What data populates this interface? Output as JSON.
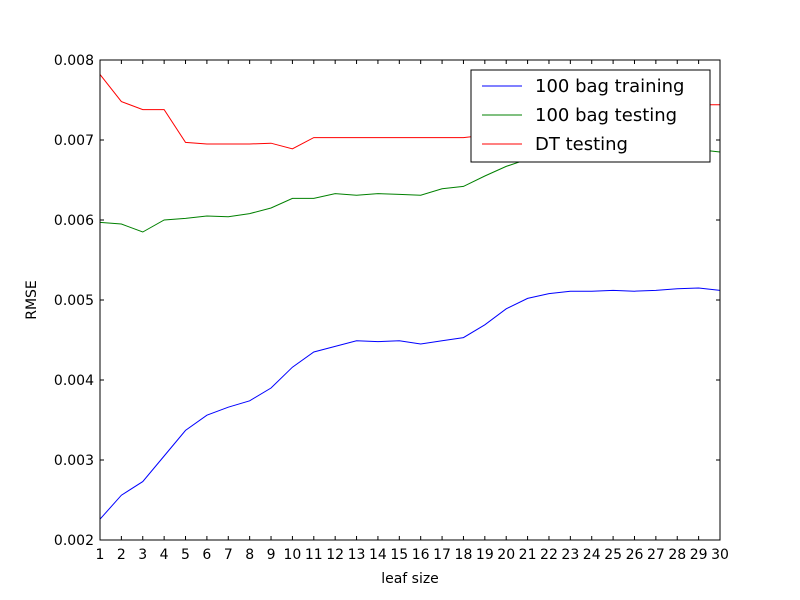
{
  "chart_data": {
    "type": "line",
    "xlabel": "leaf size",
    "ylabel": "RMSE",
    "xlim": [
      1,
      30
    ],
    "ylim": [
      0.002,
      0.008
    ],
    "x": [
      1,
      2,
      3,
      4,
      5,
      6,
      7,
      8,
      9,
      10,
      11,
      12,
      13,
      14,
      15,
      16,
      17,
      18,
      19,
      20,
      21,
      22,
      23,
      24,
      25,
      26,
      27,
      28,
      29,
      30
    ],
    "x_ticks": [
      "1",
      "2",
      "3",
      "4",
      "5",
      "6",
      "7",
      "8",
      "9",
      "10",
      "11",
      "12",
      "13",
      "14",
      "15",
      "16",
      "17",
      "18",
      "19",
      "20",
      "21",
      "22",
      "23",
      "24",
      "25",
      "26",
      "27",
      "28",
      "29",
      "30"
    ],
    "y_ticks": [
      "0.002",
      "0.003",
      "0.004",
      "0.005",
      "0.006",
      "0.007",
      "0.008"
    ],
    "y_tick_values": [
      0.002,
      0.003,
      0.004,
      0.005,
      0.006,
      0.007,
      0.008
    ],
    "grid": false,
    "legend_position": "top-right",
    "series": [
      {
        "name": "100 bag training",
        "color": "#0000ff",
        "values": [
          0.00226,
          0.00256,
          0.00273,
          0.00305,
          0.00337,
          0.00356,
          0.00366,
          0.00374,
          0.0039,
          0.00416,
          0.00435,
          0.00442,
          0.00449,
          0.00448,
          0.00449,
          0.00445,
          0.00449,
          0.00453,
          0.00469,
          0.00489,
          0.00502,
          0.00508,
          0.00511,
          0.00511,
          0.00512,
          0.00511,
          0.00512,
          0.00514,
          0.00515,
          0.00512
        ]
      },
      {
        "name": "100 bag testing",
        "color": "#008000",
        "values": [
          0.00597,
          0.00595,
          0.00585,
          0.006,
          0.00602,
          0.00605,
          0.00604,
          0.00608,
          0.00615,
          0.00627,
          0.00627,
          0.00633,
          0.00631,
          0.00633,
          0.00632,
          0.00631,
          0.00639,
          0.00642,
          0.00655,
          0.00667,
          0.00676,
          0.0068,
          0.00682,
          0.00683,
          0.00684,
          0.00685,
          0.00686,
          0.00687,
          0.00688,
          0.00685
        ]
      },
      {
        "name": "DT testing",
        "color": "#ff0000",
        "values": [
          0.00782,
          0.00748,
          0.00738,
          0.00738,
          0.00697,
          0.00695,
          0.00695,
          0.00695,
          0.00696,
          0.00689,
          0.00703,
          0.00703,
          0.00703,
          0.00703,
          0.00703,
          0.00703,
          0.00703,
          0.00703,
          0.00706,
          0.00722,
          0.00735,
          0.0074,
          0.00742,
          0.00743,
          0.00743,
          0.00744,
          0.00744,
          0.00744,
          0.00744,
          0.00744
        ]
      }
    ]
  }
}
